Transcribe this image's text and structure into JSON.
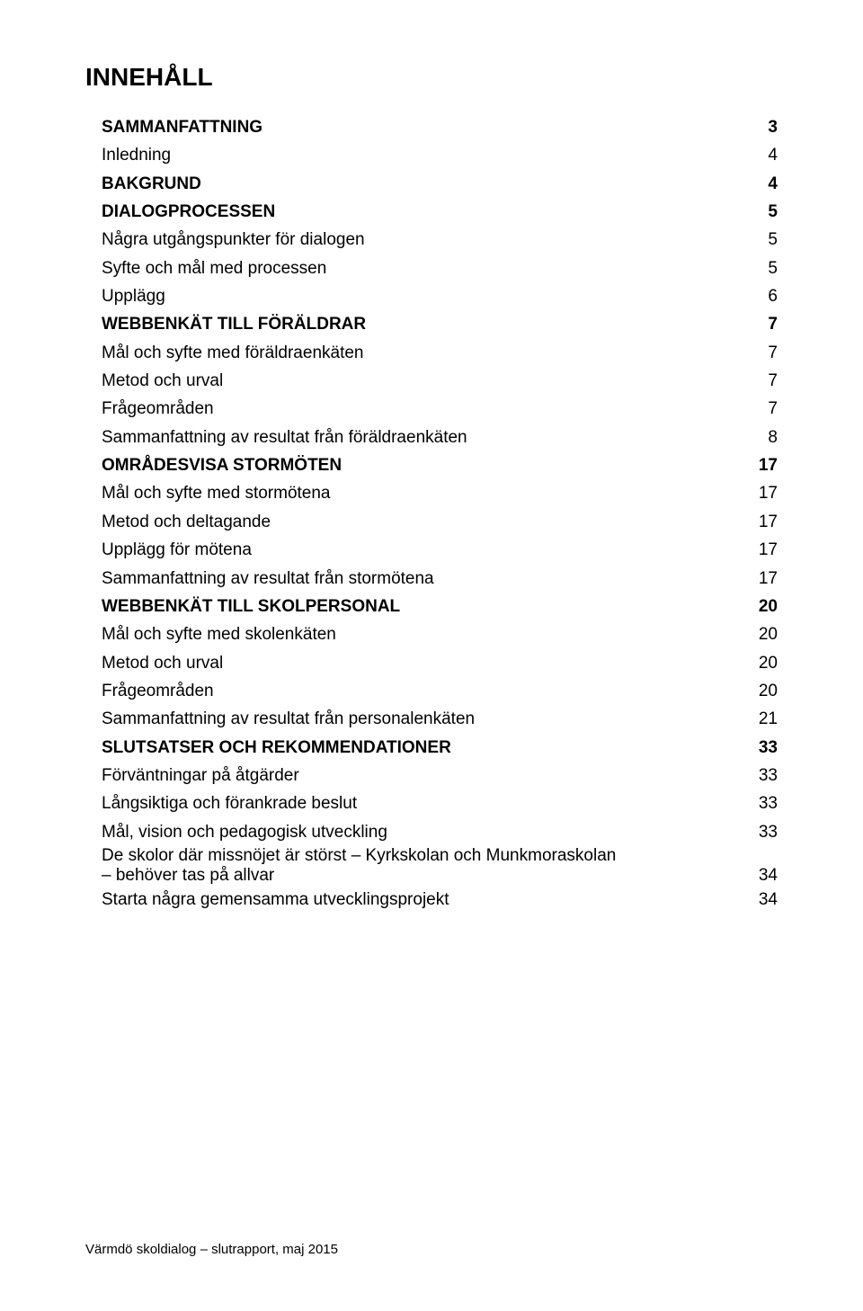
{
  "title": "INNEHÅLL",
  "footer": "Värmdö skoldialog – slutrapport, maj 2015",
  "entries": [
    {
      "level": 1,
      "label": "SAMMANFATTNING",
      "page": "3"
    },
    {
      "level": 2,
      "label": "Inledning",
      "page": "4"
    },
    {
      "level": 1,
      "label": "BAKGRUND",
      "page": "4"
    },
    {
      "level": 1,
      "label": "DIALOGPROCESSEN",
      "page": "5"
    },
    {
      "level": 2,
      "label": "Några utgångspunkter för dialogen",
      "page": "5"
    },
    {
      "level": 2,
      "label": "Syfte och mål med processen",
      "page": "5"
    },
    {
      "level": 2,
      "label": "Upplägg",
      "page": "6"
    },
    {
      "level": 1,
      "label": "WEBBENKÄT TILL FÖRÄLDRAR",
      "page": "7"
    },
    {
      "level": 2,
      "label": "Mål och syfte med föräldraenkäten",
      "page": "7"
    },
    {
      "level": 2,
      "label": "Metod och urval",
      "page": "7"
    },
    {
      "level": 2,
      "label": "Frågeområden",
      "page": "7"
    },
    {
      "level": 2,
      "label": "Sammanfattning av resultat från föräldraenkäten",
      "page": "8"
    },
    {
      "level": 1,
      "label": "OMRÅDESVISA STORMÖTEN",
      "page": "17"
    },
    {
      "level": 2,
      "label": "Mål och syfte med stormötena",
      "page": "17"
    },
    {
      "level": 2,
      "label": "Metod och deltagande",
      "page": "17"
    },
    {
      "level": 2,
      "label": "Upplägg för mötena",
      "page": "17"
    },
    {
      "level": 2,
      "label": "Sammanfattning av resultat från stormötena",
      "page": "17"
    },
    {
      "level": 1,
      "label": "WEBBENKÄT TILL SKOLPERSONAL",
      "page": "20"
    },
    {
      "level": 2,
      "label": "Mål och syfte med skolenkäten",
      "page": "20"
    },
    {
      "level": 2,
      "label": "Metod och urval",
      "page": "20"
    },
    {
      "level": 2,
      "label": "Frågeområden",
      "page": "20"
    },
    {
      "level": 2,
      "label": "Sammanfattning av resultat från personalenkäten",
      "page": "21"
    },
    {
      "level": 1,
      "label": "SLUTSATSER OCH REKOMMENDATIONER",
      "page": "33"
    },
    {
      "level": 2,
      "label": "Förväntningar på åtgärder",
      "page": "33"
    },
    {
      "level": 2,
      "label": "Långsiktiga och förankrade beslut",
      "page": "33"
    },
    {
      "level": 2,
      "label": "Mål, vision och pedagogisk utveckling",
      "page": "33"
    },
    {
      "level": 2,
      "wrap": true,
      "line1": "De skolor där missnöjet är störst – Kyrkskolan och Munkmoraskolan",
      "line2": "– behöver tas på allvar",
      "page": "34"
    },
    {
      "level": 2,
      "label": "Starta några gemensamma utvecklingsprojekt",
      "page": "34"
    }
  ]
}
